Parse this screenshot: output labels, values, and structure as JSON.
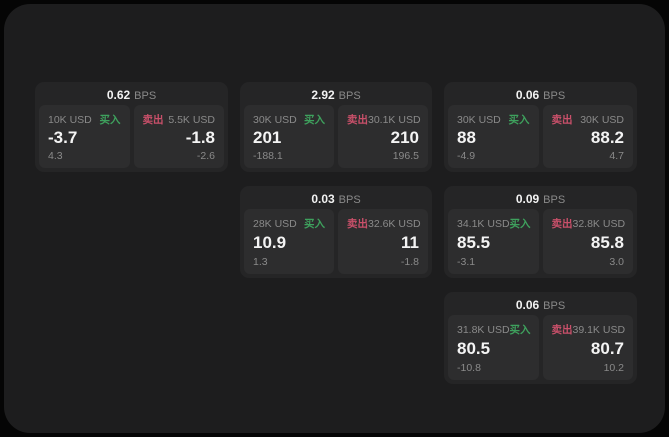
{
  "theme": {
    "page_bg": "#050505",
    "panel_bg": "#1d1d1e",
    "card_bg": "#252526",
    "tile_bg": "#2d2d2e",
    "text_primary": "#f2f2f2",
    "text_muted": "#8a8a8a",
    "buy_color": "#3ea15d",
    "sell_color": "#c9506a"
  },
  "labels": {
    "buy": "买入",
    "sell": "卖出",
    "bps_unit": "BPS"
  },
  "cards": [
    {
      "row": 1,
      "col": 1,
      "bps": "0.62",
      "buy": {
        "amount": "10K USD",
        "price": "-3.7",
        "delta": "4.3"
      },
      "sell": {
        "amount": "5.5K USD",
        "price": "-1.8",
        "delta": "-2.6"
      }
    },
    {
      "row": 1,
      "col": 2,
      "bps": "2.92",
      "buy": {
        "amount": "30K USD",
        "price": "201",
        "delta": "-188.1"
      },
      "sell": {
        "amount": "30.1K USD",
        "price": "210",
        "delta": "196.5"
      }
    },
    {
      "row": 1,
      "col": 3,
      "bps": "0.06",
      "buy": {
        "amount": "30K USD",
        "price": "88",
        "delta": "-4.9"
      },
      "sell": {
        "amount": "30K USD",
        "price": "88.2",
        "delta": "4.7"
      }
    },
    {
      "row": 2,
      "col": 2,
      "bps": "0.03",
      "buy": {
        "amount": "28K USD",
        "price": "10.9",
        "delta": "1.3"
      },
      "sell": {
        "amount": "32.6K USD",
        "price": "11",
        "delta": "-1.8"
      }
    },
    {
      "row": 2,
      "col": 3,
      "bps": "0.09",
      "buy": {
        "amount": "34.1K USD",
        "price": "85.5",
        "delta": "-3.1"
      },
      "sell": {
        "amount": "32.8K USD",
        "price": "85.8",
        "delta": "3.0"
      }
    },
    {
      "row": 3,
      "col": 3,
      "bps": "0.06",
      "buy": {
        "amount": "31.8K USD",
        "price": "80.5",
        "delta": "-10.8"
      },
      "sell": {
        "amount": "39.1K USD",
        "price": "80.7",
        "delta": "10.2"
      }
    }
  ]
}
